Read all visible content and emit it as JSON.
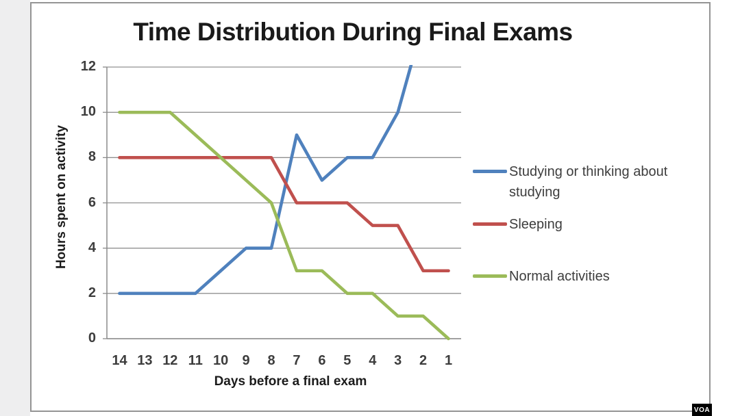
{
  "watermark": {
    "text": "VOA"
  },
  "legend": {
    "position": "right",
    "items": [
      {
        "label": "Studying or thinking about studying",
        "color": "#4F81BD"
      },
      {
        "label": "Sleeping",
        "color": "#C0504D"
      },
      {
        "label": "Normal activities",
        "color": "#9BBB59"
      }
    ]
  },
  "chart_data": {
    "type": "line",
    "title": "Time Distribution During Final Exams",
    "xlabel": "Days before a final exam",
    "ylabel": "Hours spent on activity",
    "x_categories": [
      14,
      13,
      12,
      11,
      10,
      9,
      8,
      7,
      6,
      5,
      4,
      3,
      2,
      1
    ],
    "x_note": "days count down from 14 to 1 approaching the exam",
    "ylim": [
      0,
      12
    ],
    "yticks": [
      0,
      2,
      4,
      6,
      8,
      10,
      12
    ],
    "grid": "horizontal gridlines on",
    "legend_position": "right of plot",
    "series": [
      {
        "name": "Studying or thinking about studying",
        "color": "#4F81BD",
        "values": [
          2,
          2,
          2,
          2,
          3,
          4,
          4,
          9,
          7,
          8,
          8,
          10,
          null,
          null
        ],
        "off_chart_note": "line keeps rising past 12 and exits the top of the plot between day 3 and day 2",
        "exit_extension": {
          "day": 2,
          "value": 14
        }
      },
      {
        "name": "Sleeping",
        "color": "#C0504D",
        "values": [
          8,
          8,
          8,
          8,
          8,
          8,
          8,
          6,
          6,
          6,
          5,
          5,
          3,
          3
        ]
      },
      {
        "name": "Normal activities",
        "color": "#9BBB59",
        "values": [
          10,
          10,
          10,
          9,
          8,
          7,
          6,
          3,
          3,
          2,
          2,
          1,
          1,
          0
        ]
      }
    ],
    "colors": {
      "gridline": "#909090",
      "axis_line": "#8a8a8a",
      "tick_label": "#3d3d3d",
      "title_text": "#1a1a1a"
    }
  }
}
